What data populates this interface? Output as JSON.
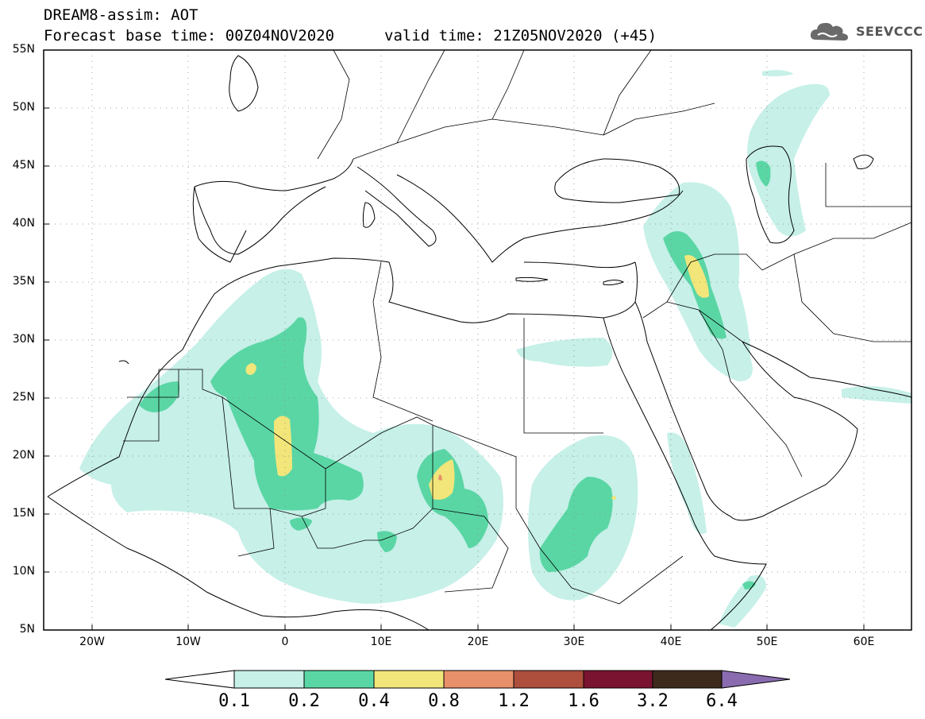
{
  "header": {
    "title_line1": "DREAM8-assim: AOT",
    "title_line2": "Forecast base time: 00Z04NOV2020",
    "valid_time": "valid time: 21Z05NOV2020 (+45)",
    "logo_text": "SEEVCCC",
    "logo_icon": "cloud-icon"
  },
  "map": {
    "lon_range": [
      -25,
      65
    ],
    "lat_range": [
      5,
      55
    ],
    "lat_labels": [
      "55N",
      "50N",
      "45N",
      "40N",
      "35N",
      "30N",
      "25N",
      "20N",
      "15N",
      "10N",
      "5N"
    ],
    "lon_labels": [
      "20W",
      "10W",
      "0",
      "10E",
      "20E",
      "30E",
      "40E",
      "50E",
      "60E"
    ],
    "grid": "dotted"
  },
  "colorbar": {
    "levels": [
      "0.1",
      "0.2",
      "0.4",
      "0.8",
      "1.2",
      "1.6",
      "3.2",
      "6.4"
    ],
    "colors": [
      "#c6f0e8",
      "#5ad6a5",
      "#f2e67a",
      "#e8906a",
      "#ad4f3c",
      "#7a1330",
      "#3e2a1c",
      "#8a6bb0"
    ],
    "under_color": "#ffffff",
    "over_color": "#8a6bb0"
  }
}
